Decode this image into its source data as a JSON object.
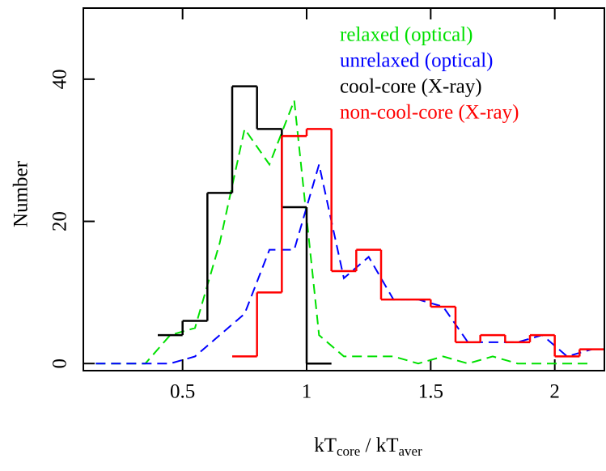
{
  "chart_data": {
    "type": "line",
    "ylabel": "Number",
    "xlabel": [
      "kT",
      "core",
      " / kT",
      "aver"
    ],
    "xlim": [
      0.1,
      2.2
    ],
    "ylim": [
      -1,
      50
    ],
    "xticks": [
      0.5,
      1,
      1.5,
      2
    ],
    "yticks": [
      0,
      20,
      40
    ],
    "legend": "upper right",
    "series": [
      {
        "name": "relaxed (optical)",
        "color": "#00e000",
        "style": "dashed",
        "x": [
          0.15,
          0.25,
          0.35,
          0.45,
          0.55,
          0.65,
          0.75,
          0.85,
          0.95,
          1.05,
          1.15,
          1.25,
          1.35,
          1.45,
          1.55,
          1.65,
          1.75,
          1.85,
          1.95,
          2.05,
          2.15
        ],
        "values": [
          0,
          0,
          0,
          4,
          5,
          17,
          33,
          28,
          37,
          4,
          1,
          1,
          1,
          0,
          1,
          0,
          1,
          0,
          0,
          0,
          0
        ]
      },
      {
        "name": "unrelaxed (optical)",
        "color": "#0000ff",
        "style": "dashed",
        "x": [
          0.15,
          0.25,
          0.35,
          0.45,
          0.55,
          0.65,
          0.75,
          0.85,
          0.95,
          1.05,
          1.15,
          1.25,
          1.35,
          1.45,
          1.55,
          1.65,
          1.75,
          1.85,
          1.95,
          2.05,
          2.15
        ],
        "values": [
          0,
          0,
          0,
          0,
          1,
          4,
          7,
          16,
          16,
          28,
          12,
          15,
          9,
          9,
          8,
          3,
          3,
          3,
          4,
          1,
          2
        ]
      },
      {
        "name": "cool-core (X-ray)",
        "color": "#000000",
        "style": "step",
        "bins": [
          0.4,
          0.5,
          0.6,
          0.7,
          0.8,
          0.9,
          1.0,
          1.1
        ],
        "values": [
          4,
          6,
          24,
          39,
          33,
          22,
          0
        ]
      },
      {
        "name": "non-cool-core (X-ray)",
        "color": "#ff0000",
        "style": "step",
        "bins": [
          0.7,
          0.8,
          0.9,
          1.0,
          1.1,
          1.2,
          1.3,
          1.4,
          1.5,
          1.6,
          1.7,
          1.8,
          1.9,
          2.0,
          2.1,
          2.2
        ],
        "values": [
          1,
          10,
          32,
          33,
          13,
          16,
          9,
          9,
          8,
          3,
          4,
          3,
          4,
          1,
          2
        ]
      }
    ]
  }
}
